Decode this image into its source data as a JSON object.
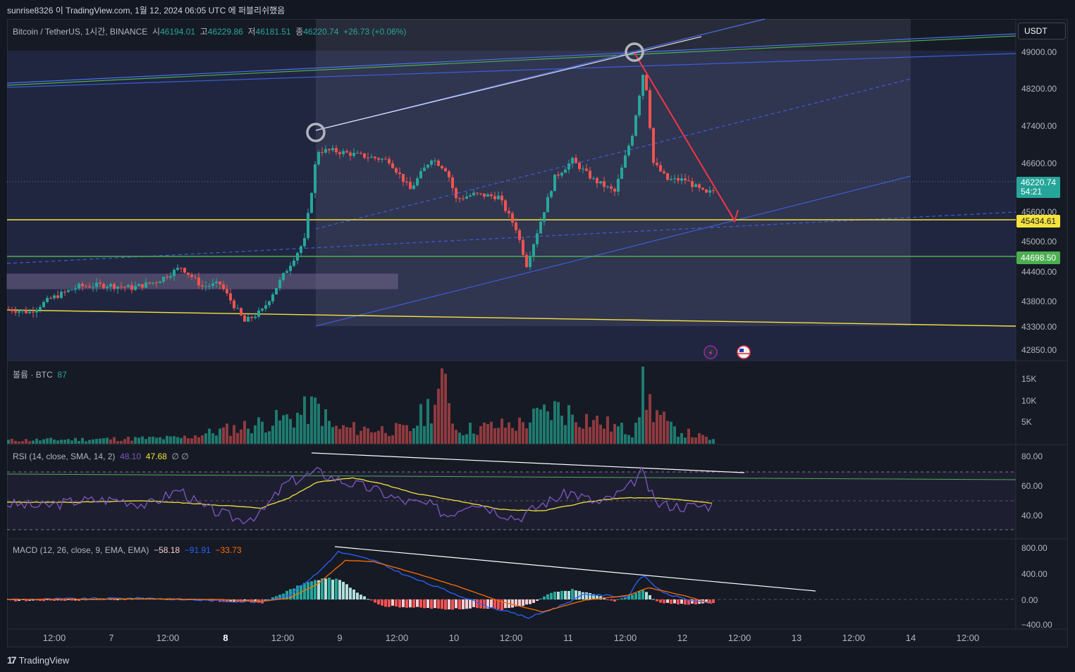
{
  "publisher_line": "sunrise8326 이 TradingView.com, 1월 12, 2024 06:05 UTC 에 퍼블리쉬했음",
  "currency_button": "USDT",
  "colors": {
    "up": "#26a69a",
    "down": "#ef5350",
    "rsi": "#7e57c2",
    "rsi_ma": "#f3e338",
    "macd": "#2962ff",
    "signal": "#ff6d00",
    "support": "#f7e33b",
    "green_line": "#4caf50",
    "channel": "#2962ff"
  },
  "main": {
    "symbol": "Bitcoin / TetherUS, 1시간, BINANCE",
    "o_label": "시",
    "o": "46194.01",
    "h_label": "고",
    "h": "46229.86",
    "l_label": "저",
    "l": "46181.51",
    "c_label": "종",
    "c": "46220.74",
    "change": "+26.73 (+0.06%)",
    "axis": [
      "49000.00",
      "48200.00",
      "47400.00",
      "46600.00",
      "45600.00",
      "45000.00",
      "44400.00",
      "43800.00",
      "43300.00",
      "42850.00"
    ],
    "last_price": "46220.74",
    "countdown": "54:21",
    "support_price": "45434.61",
    "green_price": "44698.50"
  },
  "volume": {
    "label": "볼륨 · BTC",
    "value": "87",
    "axis": [
      "15K",
      "10K",
      "5K"
    ]
  },
  "rsi": {
    "label": "RSI (14, close, SMA, 14, 2)",
    "v1": "48.10",
    "v2": "47.68",
    "extra": "∅ ∅",
    "axis": [
      "80.00",
      "60.00",
      "40.00"
    ]
  },
  "macd": {
    "label": "MACD (12, 26, close, 9, EMA, EMA)",
    "v1": "−58.18",
    "v2": "−91.91",
    "v3": "−33.73",
    "axis": [
      "800.00",
      "400.00",
      "0.00",
      "−400.00"
    ]
  },
  "time_axis": [
    "12:00",
    "7",
    "12:00",
    "8",
    "12:00",
    "9",
    "12:00",
    "10",
    "12:00",
    "11",
    "12:00",
    "12",
    "12:00",
    "13",
    "12:00",
    "14",
    "12:00"
  ],
  "branding": "TradingView",
  "chart_data": {
    "type": "candlestick",
    "symbol": "BTCUSDT",
    "timeframe": "1h",
    "ylim": [
      42700,
      49400
    ],
    "close_path": [
      [
        0,
        43680
      ],
      [
        30,
        43620
      ],
      [
        60,
        43900
      ],
      [
        100,
        44150
      ],
      [
        140,
        44180
      ],
      [
        175,
        44120
      ],
      [
        210,
        44250
      ],
      [
        245,
        44550
      ],
      [
        275,
        44150
      ],
      [
        300,
        44200
      ],
      [
        335,
        43420
      ],
      [
        360,
        43650
      ],
      [
        395,
        44500
      ],
      [
        420,
        45100
      ],
      [
        438,
        46950
      ],
      [
        460,
        46950
      ],
      [
        500,
        46850
      ],
      [
        540,
        46750
      ],
      [
        570,
        46150
      ],
      [
        600,
        46800
      ],
      [
        622,
        46550
      ],
      [
        635,
        45950
      ],
      [
        660,
        46050
      ],
      [
        695,
        46000
      ],
      [
        720,
        45350
      ],
      [
        735,
        44600
      ],
      [
        755,
        45500
      ],
      [
        775,
        46400
      ],
      [
        800,
        46750
      ],
      [
        830,
        46350
      ],
      [
        860,
        46100
      ],
      [
        885,
        47300
      ],
      [
        902,
        48700
      ],
      [
        915,
        46700
      ],
      [
        935,
        46350
      ],
      [
        960,
        46350
      ],
      [
        990,
        46050
      ],
      [
        1010,
        46220
      ]
    ],
    "volume_bars": [
      [
        0,
        900
      ],
      [
        120,
        1200
      ],
      [
        245,
        1500
      ],
      [
        400,
        6500
      ],
      [
        438,
        9500
      ],
      [
        460,
        4000
      ],
      [
        570,
        3500
      ],
      [
        622,
        15000
      ],
      [
        635,
        3500
      ],
      [
        725,
        5000
      ],
      [
        778,
        9000
      ],
      [
        800,
        7500
      ],
      [
        885,
        3000
      ],
      [
        898,
        14000
      ],
      [
        912,
        9500
      ],
      [
        940,
        3800
      ],
      [
        1010,
        500
      ]
    ],
    "rsi": [
      [
        0,
        48
      ],
      [
        50,
        46
      ],
      [
        100,
        50
      ],
      [
        160,
        51
      ],
      [
        200,
        47
      ],
      [
        245,
        58
      ],
      [
        275,
        46
      ],
      [
        330,
        37
      ],
      [
        360,
        41
      ],
      [
        395,
        62
      ],
      [
        440,
        70
      ],
      [
        480,
        63
      ],
      [
        520,
        58
      ],
      [
        560,
        50
      ],
      [
        600,
        47
      ],
      [
        625,
        40
      ],
      [
        660,
        50
      ],
      [
        700,
        42
      ],
      [
        725,
        38
      ],
      [
        760,
        48
      ],
      [
        800,
        56
      ],
      [
        840,
        48
      ],
      [
        880,
        58
      ],
      [
        900,
        70
      ],
      [
        920,
        48
      ],
      [
        960,
        46
      ],
      [
        1010,
        47
      ]
    ],
    "rsi_ma": [
      [
        0,
        49
      ],
      [
        100,
        49
      ],
      [
        200,
        50
      ],
      [
        300,
        47
      ],
      [
        360,
        45
      ],
      [
        400,
        52
      ],
      [
        440,
        63
      ],
      [
        490,
        66
      ],
      [
        530,
        62
      ],
      [
        580,
        55
      ],
      [
        640,
        50
      ],
      [
        700,
        44
      ],
      [
        760,
        43
      ],
      [
        820,
        49
      ],
      [
        870,
        52
      ],
      [
        920,
        52
      ],
      [
        970,
        50
      ],
      [
        1010,
        48
      ]
    ],
    "macd": [
      [
        0,
        0
      ],
      [
        200,
        20
      ],
      [
        300,
        -20
      ],
      [
        360,
        -40
      ],
      [
        400,
        70
      ],
      [
        440,
        400
      ],
      [
        470,
        730
      ],
      [
        520,
        600
      ],
      [
        570,
        350
      ],
      [
        620,
        150
      ],
      [
        680,
        -100
      ],
      [
        740,
        -280
      ],
      [
        780,
        -120
      ],
      [
        820,
        80
      ],
      [
        880,
        40
      ],
      [
        902,
        380
      ],
      [
        930,
        100
      ],
      [
        980,
        -40
      ],
      [
        1010,
        -58
      ]
    ],
    "macd_signal": [
      [
        0,
        0
      ],
      [
        200,
        10
      ],
      [
        300,
        0
      ],
      [
        360,
        -30
      ],
      [
        400,
        20
      ],
      [
        440,
        230
      ],
      [
        480,
        600
      ],
      [
        520,
        580
      ],
      [
        580,
        400
      ],
      [
        640,
        200
      ],
      [
        700,
        -30
      ],
      [
        760,
        -190
      ],
      [
        820,
        -10
      ],
      [
        880,
        60
      ],
      [
        910,
        180
      ],
      [
        960,
        60
      ],
      [
        1010,
        -92
      ]
    ],
    "macd_hist": [
      [
        0,
        -20
      ],
      [
        100,
        -10
      ],
      [
        200,
        20
      ],
      [
        300,
        -30
      ],
      [
        360,
        -50
      ],
      [
        390,
        100
      ],
      [
        420,
        250
      ],
      [
        450,
        330
      ],
      [
        470,
        300
      ],
      [
        500,
        80
      ],
      [
        530,
        -100
      ],
      [
        570,
        -120
      ],
      [
        620,
        -150
      ],
      [
        660,
        -130
      ],
      [
        700,
        -150
      ],
      [
        740,
        -80
      ],
      [
        770,
        100
      ],
      [
        800,
        150
      ],
      [
        830,
        80
      ],
      [
        860,
        -30
      ],
      [
        880,
        60
      ],
      [
        900,
        150
      ],
      [
        920,
        -40
      ],
      [
        960,
        -80
      ],
      [
        1010,
        -34
      ]
    ]
  }
}
